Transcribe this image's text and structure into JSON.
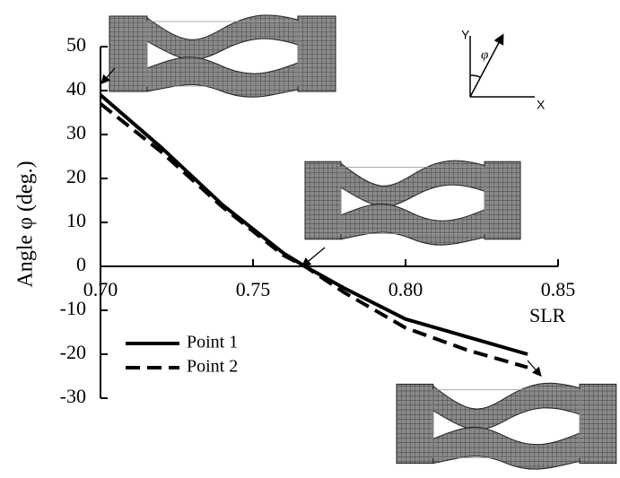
{
  "chart_data": {
    "type": "line",
    "x_label": "SLR",
    "y_label": "Angle φ (deg.)",
    "x": [
      0.7,
      0.72,
      0.74,
      0.76,
      0.767,
      0.78,
      0.8,
      0.82,
      0.84
    ],
    "series": [
      {
        "name": "Point 1",
        "color": "#000000",
        "dashed": false,
        "values": [
          39,
          27,
          14,
          3,
          0,
          -5,
          -12,
          -16,
          -20
        ]
      },
      {
        "name": "Point 2",
        "color": "#000000",
        "dashed": true,
        "values": [
          37,
          26,
          13.5,
          2.5,
          0,
          -6,
          -14,
          -19,
          -23
        ]
      }
    ],
    "xlim": [
      0.7,
      0.85
    ],
    "xticks": [
      {
        "value": 0.7,
        "label": "0.70"
      },
      0.75,
      {
        "value": 0.8,
        "label": "0.80"
      },
      0.85
    ],
    "ylim": [
      -30,
      50
    ],
    "yticks": [
      -30,
      -20,
      -10,
      0,
      10,
      20,
      30,
      40,
      50
    ],
    "annotations": {
      "axis_y": "Y",
      "axis_x": "X",
      "angle": "φ"
    }
  }
}
